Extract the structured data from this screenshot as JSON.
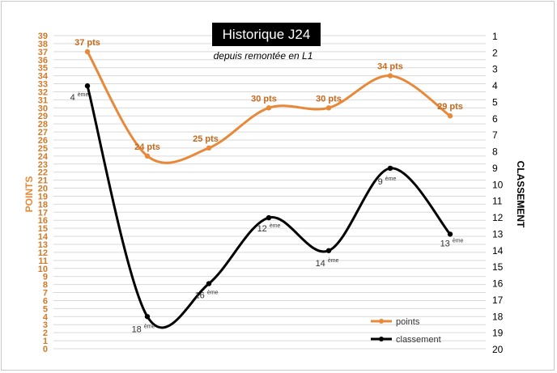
{
  "chart_data": {
    "type": "line",
    "title": "Historique J24",
    "subtitle": "depuis remontée en L1",
    "y_left_label": "POINTS",
    "y_right_label": "CLASSEMENT",
    "y_left_range": [
      0,
      39
    ],
    "y_right_range": [
      1,
      20
    ],
    "y_right_inverted": true,
    "y_left_ticks": [
      "0",
      "1",
      "2",
      "3",
      "4",
      "5",
      "6",
      "7",
      "8",
      "9",
      "10",
      "11",
      "12",
      "13",
      "14",
      "15",
      "16",
      "17",
      "18",
      "19",
      "20",
      "21",
      "22",
      "23",
      "24",
      "25",
      "26",
      "27",
      "28",
      "29",
      "30",
      "31",
      "32",
      "33",
      "34",
      "35",
      "36",
      "37",
      "38",
      "39"
    ],
    "y_right_ticks": [
      "1",
      "2",
      "3",
      "4",
      "5",
      "6",
      "7",
      "8",
      "9",
      "10",
      "11",
      "12",
      "13",
      "14",
      "15",
      "16",
      "17",
      "18",
      "19",
      "20"
    ],
    "grid": true,
    "legend_position": "bottom-right",
    "series": [
      {
        "name": "points",
        "color": "#e8893a",
        "axis": "left",
        "values": [
          37,
          24,
          25,
          30,
          30,
          34,
          29
        ],
        "labels": [
          "37 pts",
          "24 pts",
          "25 pts",
          "30 pts",
          "30 pts",
          "34 pts",
          "29 pts"
        ]
      },
      {
        "name": "classement",
        "color": "#000000",
        "axis": "right",
        "values": [
          4,
          18,
          16,
          12,
          14,
          9,
          13
        ],
        "labels": [
          "4",
          "18",
          "16",
          "12",
          "14",
          "9",
          "13"
        ],
        "label_suffix": "ème"
      }
    ]
  }
}
